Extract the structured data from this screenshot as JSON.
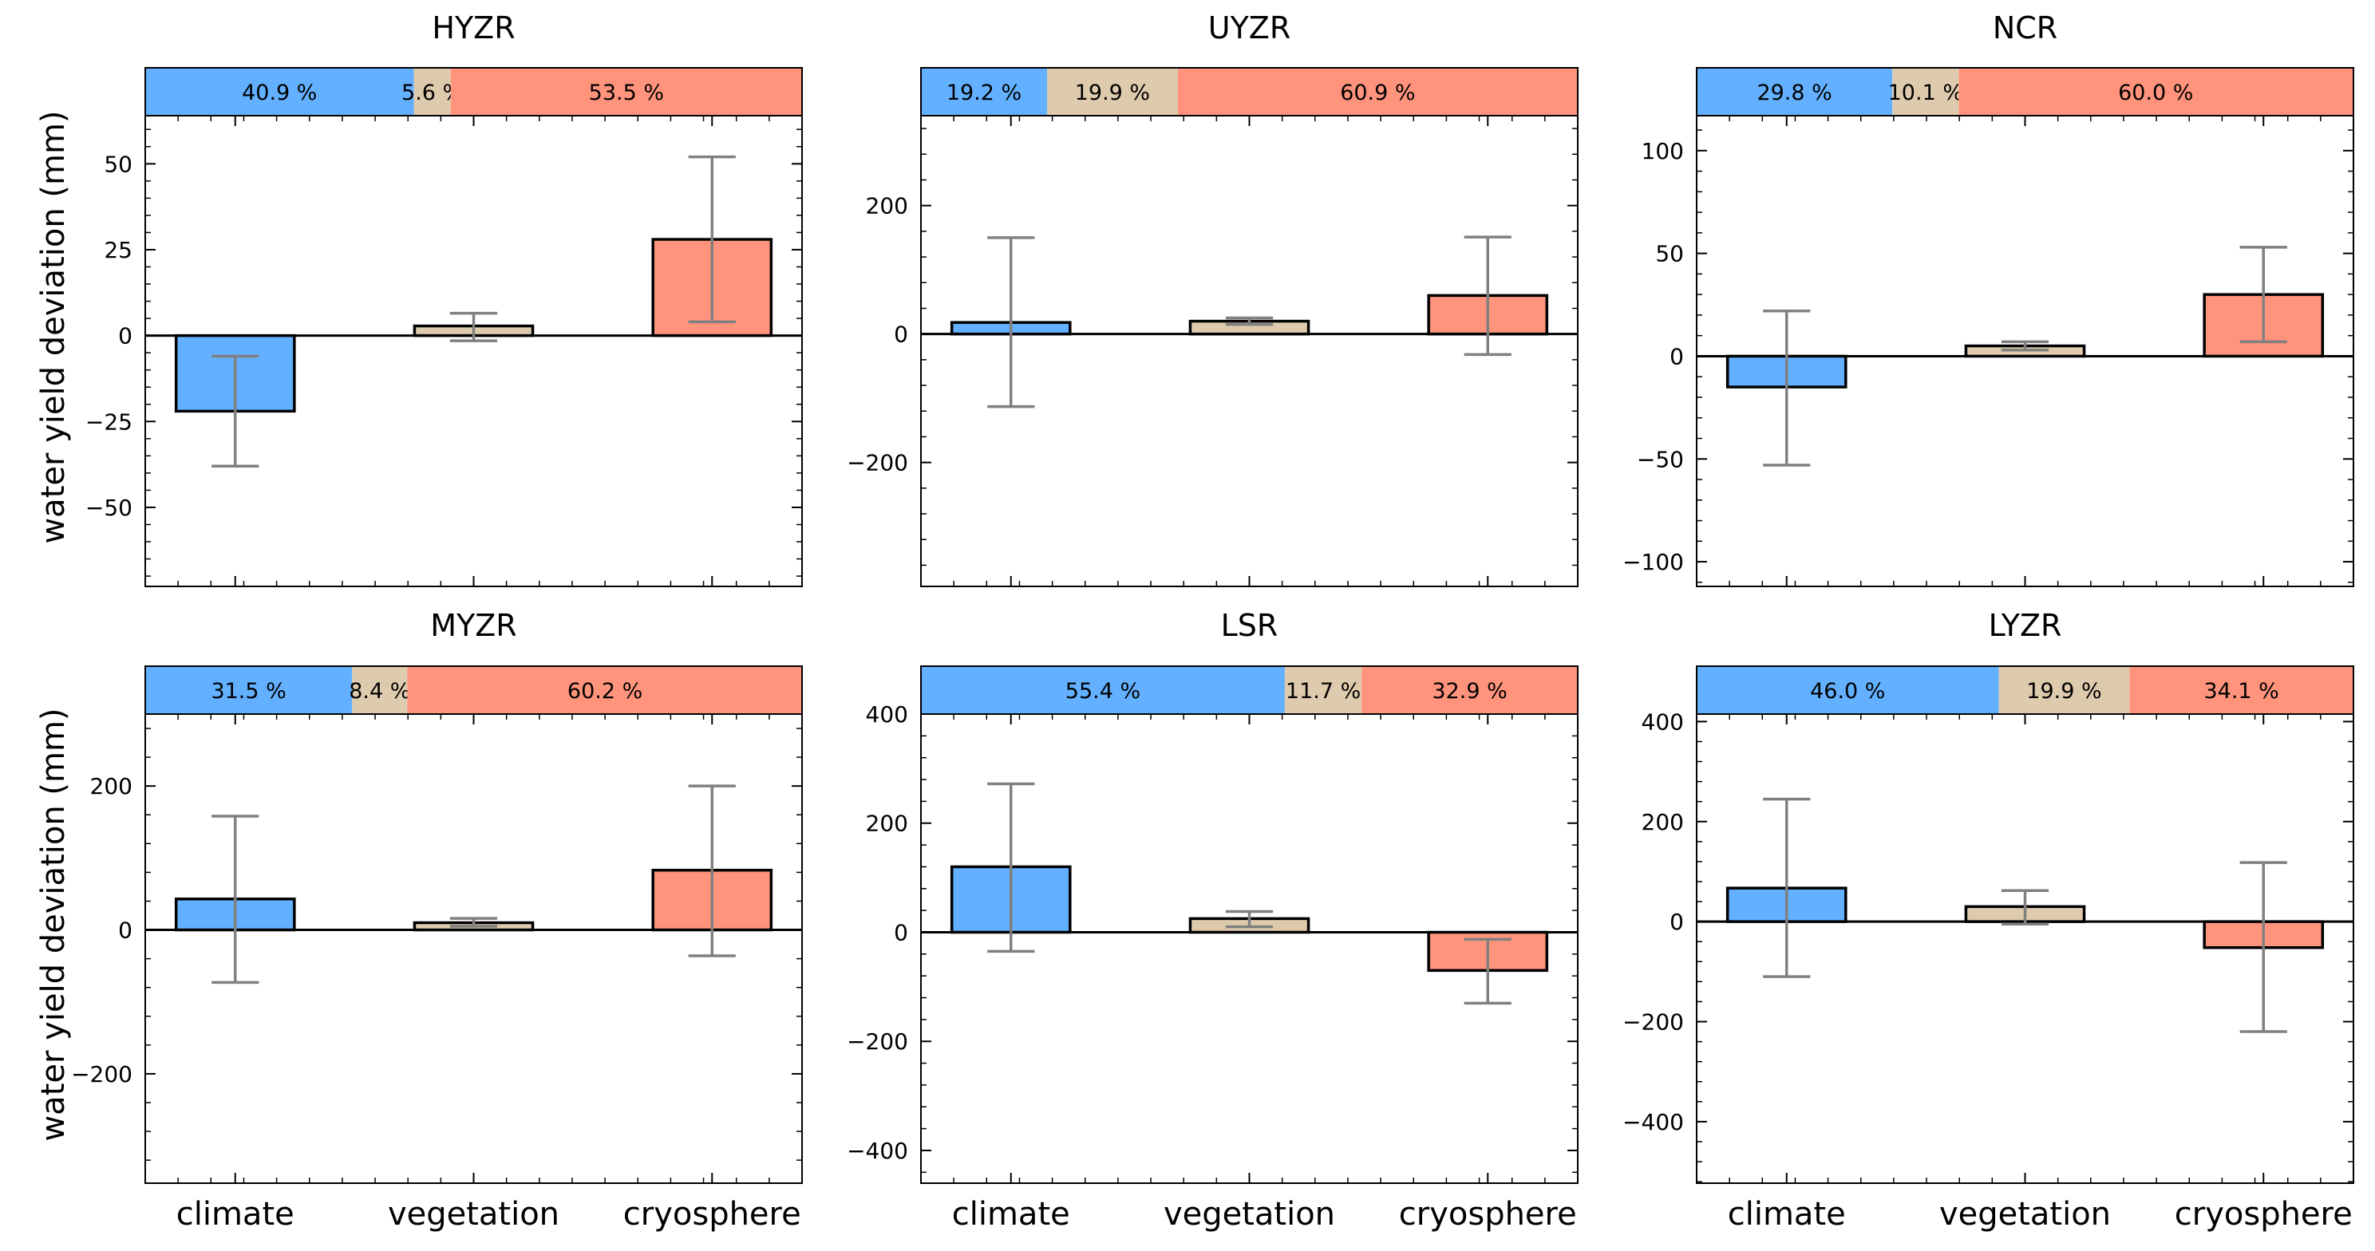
{
  "figure": {
    "ylabel": "water yield deviation (mm)",
    "categories": [
      "climate",
      "vegetation",
      "cryosphere"
    ],
    "colors": {
      "climate": "#62b0ff",
      "vegetation": "#decbad",
      "cryosphere": "#ff937c"
    }
  },
  "chart_data": [
    {
      "type": "bar",
      "title": "HYZR",
      "categories": [
        "climate",
        "vegetation",
        "cryosphere"
      ],
      "values": [
        -22,
        2.8,
        28
      ],
      "error_low": [
        -38,
        -1.5,
        4
      ],
      "error_high": [
        -6,
        6.5,
        52
      ],
      "ylim": [
        -73,
        64
      ],
      "yticks": [
        50,
        25,
        0,
        -25,
        -50
      ],
      "contribution_percent": [
        40.9,
        5.6,
        53.5
      ],
      "contribution_labels": [
        "40.9 %",
        "5.6 %",
        "53.5 %"
      ],
      "ylabel": "water yield deviation (mm)"
    },
    {
      "type": "bar",
      "title": "UYZR",
      "categories": [
        "climate",
        "vegetation",
        "cryosphere"
      ],
      "values": [
        18,
        20,
        60
      ],
      "error_low": [
        -113,
        15,
        -32
      ],
      "error_high": [
        150,
        25,
        151
      ],
      "ylim": [
        -393,
        340
      ],
      "yticks": [
        200,
        0,
        -200
      ],
      "contribution_percent": [
        19.2,
        19.9,
        60.9
      ],
      "contribution_labels": [
        "19.2 %",
        "19.9 %",
        "60.9 %"
      ],
      "ylabel": ""
    },
    {
      "type": "bar",
      "title": "NCR",
      "categories": [
        "climate",
        "vegetation",
        "cryosphere"
      ],
      "values": [
        -15,
        5,
        30
      ],
      "error_low": [
        -53,
        3,
        7
      ],
      "error_high": [
        22,
        7,
        53
      ],
      "ylim": [
        -112,
        117
      ],
      "yticks": [
        100,
        50,
        0,
        -50,
        -100
      ],
      "contribution_percent": [
        29.8,
        10.1,
        60.0
      ],
      "contribution_labels": [
        "29.8 %",
        "10.1 %",
        "60.0 %"
      ],
      "ylabel": ""
    },
    {
      "type": "bar",
      "title": "MYZR",
      "categories": [
        "climate",
        "vegetation",
        "cryosphere"
      ],
      "values": [
        43,
        10,
        83
      ],
      "error_low": [
        -73,
        5,
        -36
      ],
      "error_high": [
        158,
        16,
        200
      ],
      "ylim": [
        -352,
        300
      ],
      "yticks": [
        200,
        0,
        -200
      ],
      "contribution_percent": [
        31.5,
        8.4,
        60.2
      ],
      "contribution_labels": [
        "31.5 %",
        "8.4 %",
        "60.2 %"
      ],
      "ylabel": "water yield deviation (mm)"
    },
    {
      "type": "bar",
      "title": "LSR",
      "categories": [
        "climate",
        "vegetation",
        "cryosphere"
      ],
      "values": [
        120,
        25,
        -70
      ],
      "error_low": [
        -35,
        10,
        -130
      ],
      "error_high": [
        272,
        38,
        -13
      ],
      "ylim": [
        -460,
        400
      ],
      "yticks": [
        400,
        200,
        0,
        -200,
        -400
      ],
      "contribution_percent": [
        55.4,
        11.7,
        32.9
      ],
      "contribution_labels": [
        "55.4 %",
        "11.7 %",
        "32.9 %"
      ],
      "ylabel": ""
    },
    {
      "type": "bar",
      "title": "LYZR",
      "categories": [
        "climate",
        "vegetation",
        "cryosphere"
      ],
      "values": [
        67,
        30,
        -52
      ],
      "error_low": [
        -110,
        -5,
        -220
      ],
      "error_high": [
        245,
        62,
        118
      ],
      "ylim": [
        -523,
        415
      ],
      "yticks": [
        400,
        200,
        0,
        -200,
        -400
      ],
      "contribution_percent": [
        46.0,
        19.9,
        34.1
      ],
      "contribution_labels": [
        "46.0 %",
        "19.9 %",
        "34.1 %"
      ],
      "ylabel": ""
    }
  ]
}
